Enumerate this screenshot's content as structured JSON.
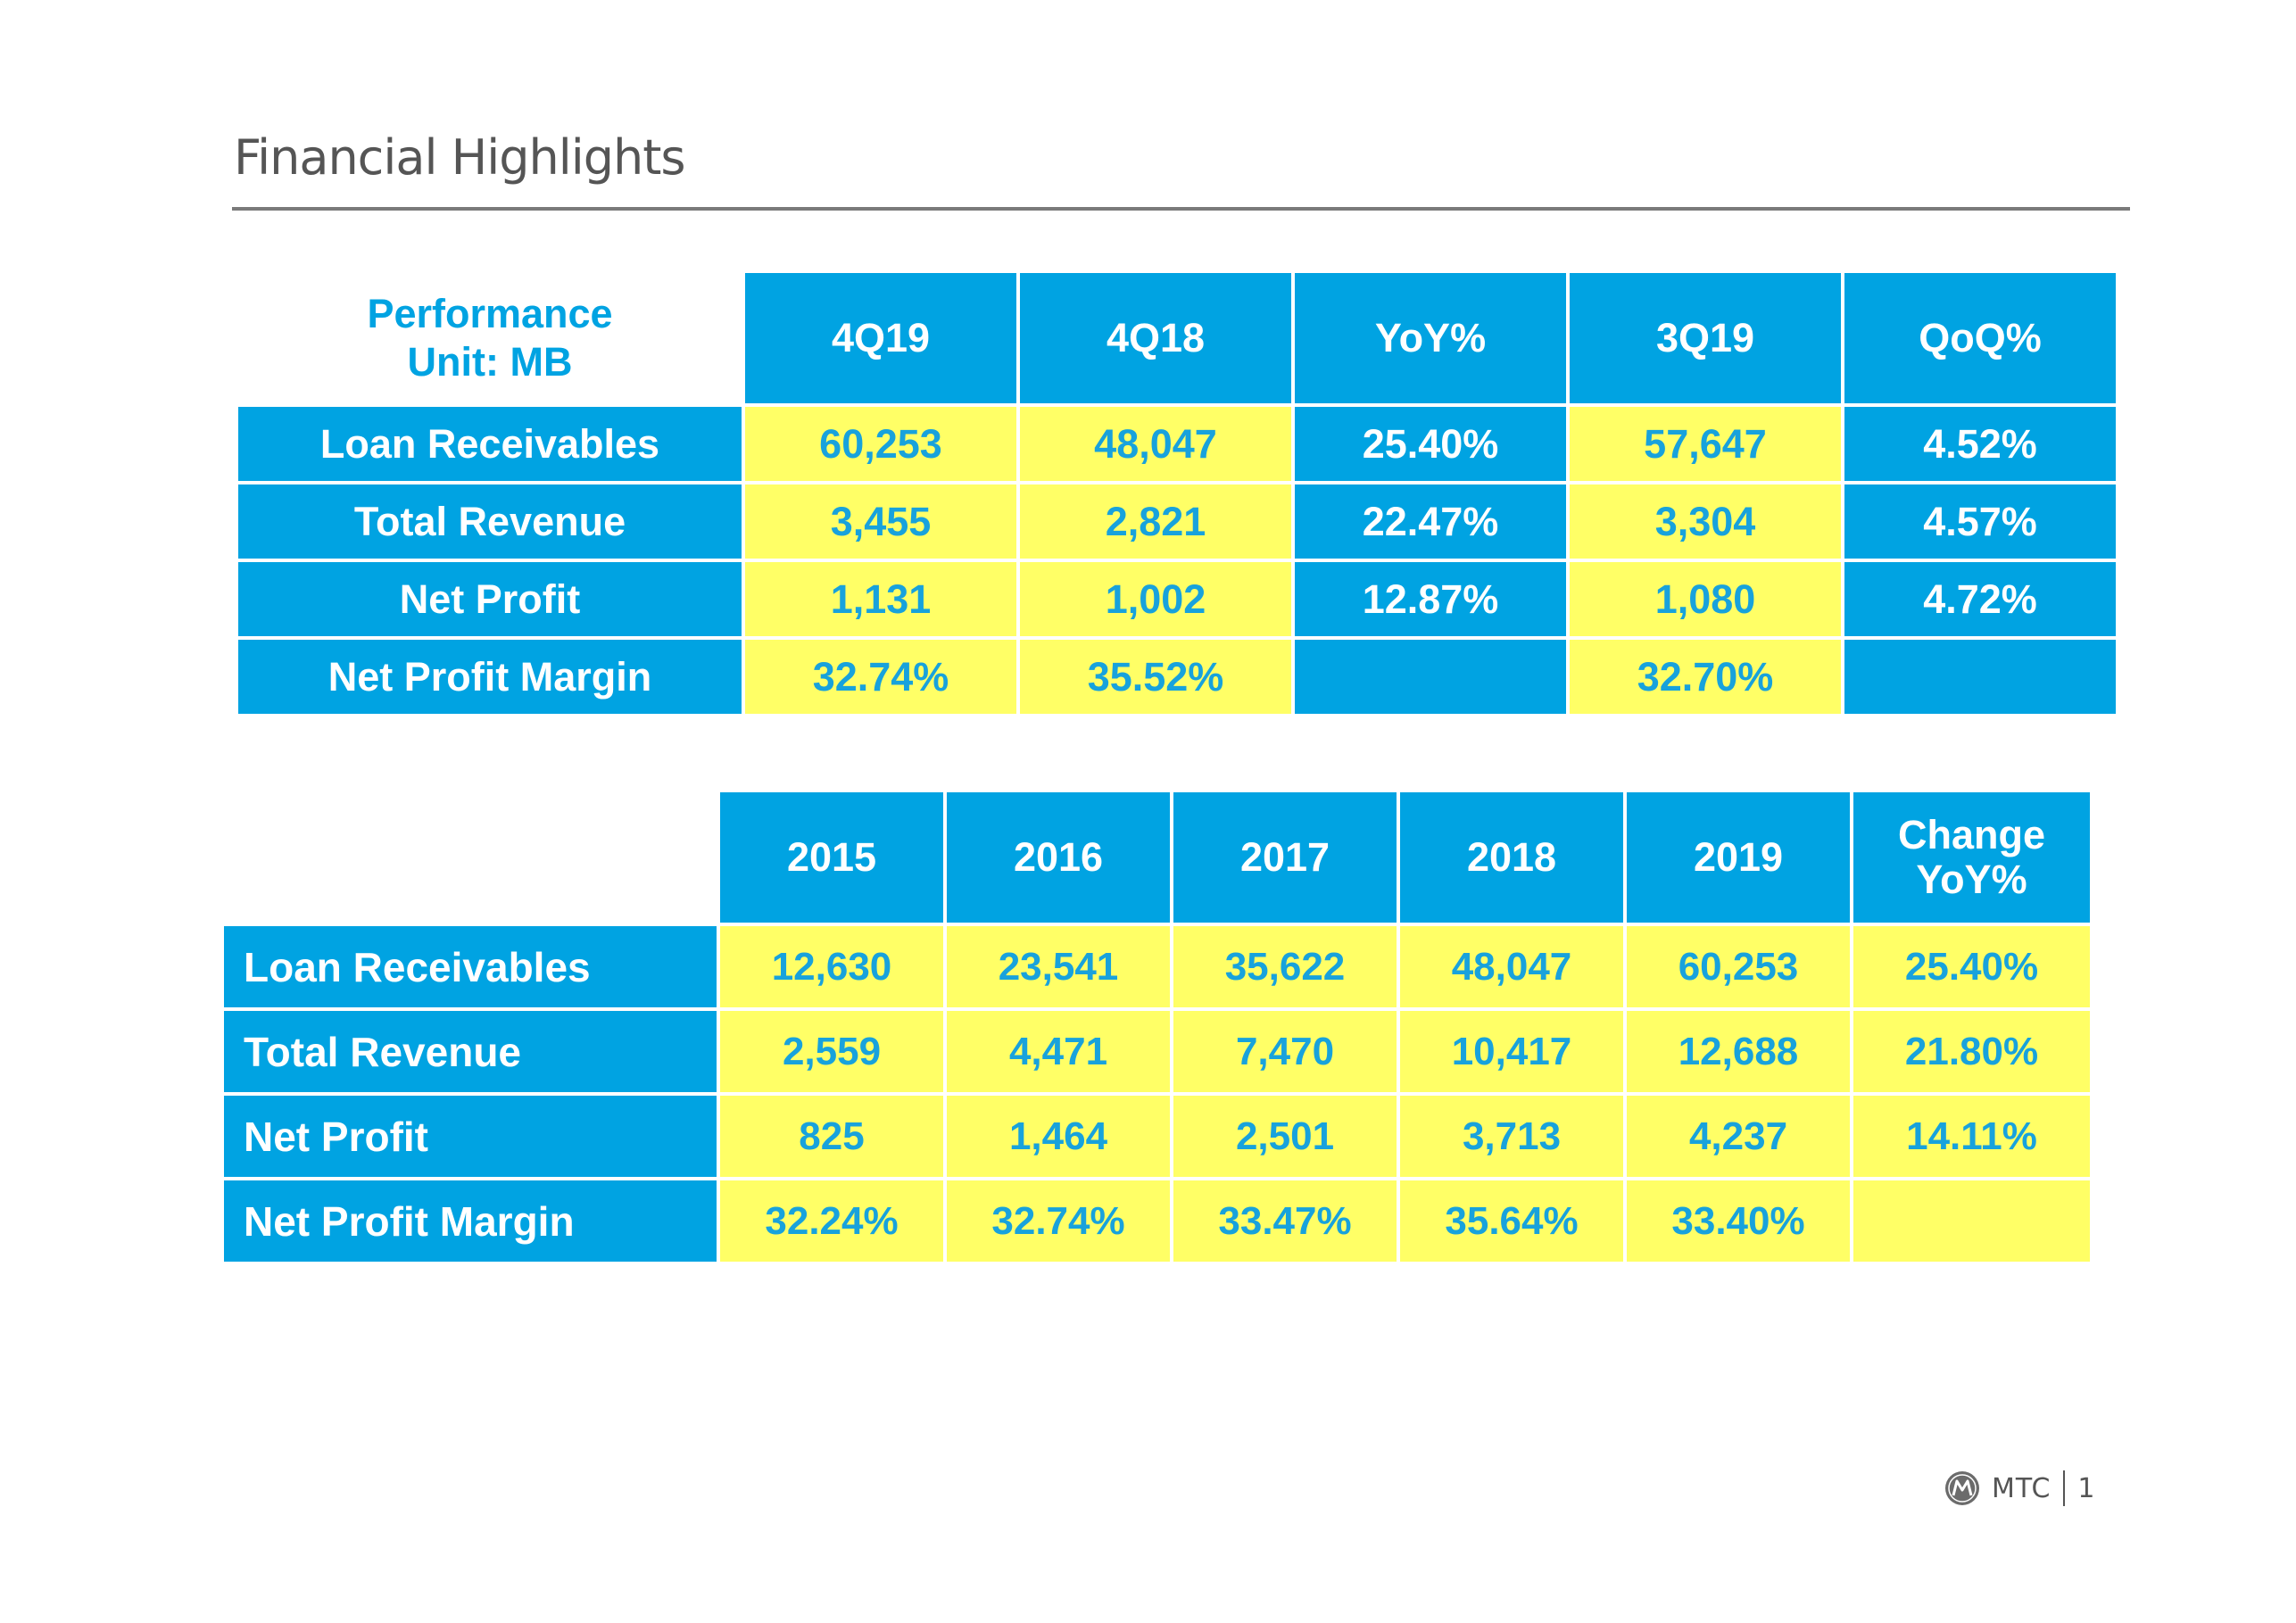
{
  "title": "Financial Highlights",
  "quarterly": {
    "corner_line1": "Performance",
    "corner_line2": "Unit: MB",
    "columns": [
      "4Q19",
      "4Q18",
      "YoY%",
      "3Q19",
      "QoQ%"
    ],
    "rows": [
      {
        "label": "Loan Receivables",
        "values": [
          "60,253",
          "48,047",
          "25.40%",
          "57,647",
          "4.52%"
        ]
      },
      {
        "label": "Total Revenue",
        "values": [
          "3,455",
          "2,821",
          "22.47%",
          "3,304",
          "4.57%"
        ]
      },
      {
        "label": "Net Profit",
        "values": [
          "1,131",
          "1,002",
          "12.87%",
          "1,080",
          "4.72%"
        ]
      },
      {
        "label": "Net Profit Margin",
        "values": [
          "32.74%",
          "35.52%",
          "",
          "32.70%",
          ""
        ]
      }
    ]
  },
  "annual": {
    "columns": [
      "2015",
      "2016",
      "2017",
      "2018",
      "2019"
    ],
    "change_line1": "Change",
    "change_line2": "YoY%",
    "rows": [
      {
        "label": "Loan Receivables",
        "values": [
          "12,630",
          "23,541",
          "35,622",
          "48,047",
          "60,253",
          "25.40%"
        ]
      },
      {
        "label": "Total Revenue",
        "values": [
          "2,559",
          "4,471",
          "7,470",
          "10,417",
          "12,688",
          "21.80%"
        ]
      },
      {
        "label": "Net Profit",
        "values": [
          "825",
          "1,464",
          "2,501",
          "3,713",
          "4,237",
          "14.11%"
        ]
      },
      {
        "label": "Net Profit Margin",
        "values": [
          "32.24%",
          "32.74%",
          "33.47%",
          "35.64%",
          "33.40%",
          ""
        ]
      }
    ]
  },
  "footer": {
    "brand": "MTC",
    "page_number": "1",
    "logo_icon": "mtc-logo-icon"
  },
  "colors": {
    "header_blue": "#00a3e2",
    "cell_yellow": "#ffff66",
    "value_text": "#18a2dc"
  }
}
